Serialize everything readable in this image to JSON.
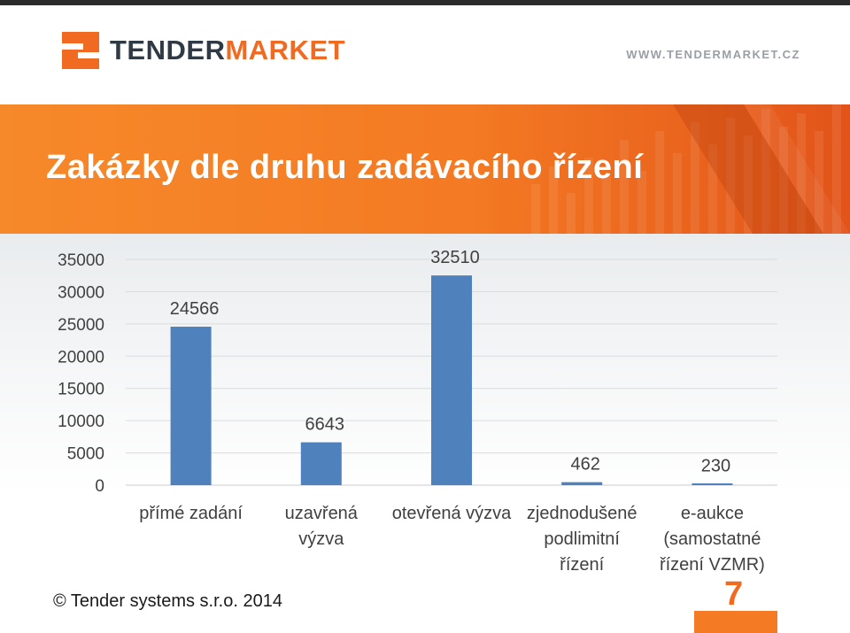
{
  "header": {
    "logo": {
      "name_dark": "TENDER",
      "name_accent": "MARKET"
    },
    "url": "WWW.TENDERMARKET.CZ"
  },
  "banner": {
    "title": "Zakázky dle druhu zadávacího řízení"
  },
  "chart_data": {
    "type": "bar",
    "categories": [
      [
        "přímé zadání"
      ],
      [
        "uzavřená",
        "výzva"
      ],
      [
        "otevřená výzva"
      ],
      [
        "zjednodušené",
        "podlimitní",
        "řízení"
      ],
      [
        "e-aukce",
        "(samostatné",
        "řízení VZMR)"
      ]
    ],
    "values": [
      24566,
      6643,
      32510,
      462,
      230
    ],
    "ylim": [
      0,
      35000
    ],
    "yticks": [
      0,
      5000,
      10000,
      15000,
      20000,
      25000,
      30000,
      35000
    ],
    "ytick_labels": [
      "0",
      "5000",
      "10000",
      "15000",
      "20000",
      "25000",
      "30000",
      "35000"
    ],
    "grid": true,
    "bar_color": "#4f81bd",
    "legend": "none"
  },
  "footer": {
    "copyright": "© Tender systems s.r.o. 2014",
    "page": "7"
  },
  "colors": {
    "accent": "#f47a23",
    "dark": "#2f3a45",
    "bar": "#4f81bd"
  }
}
